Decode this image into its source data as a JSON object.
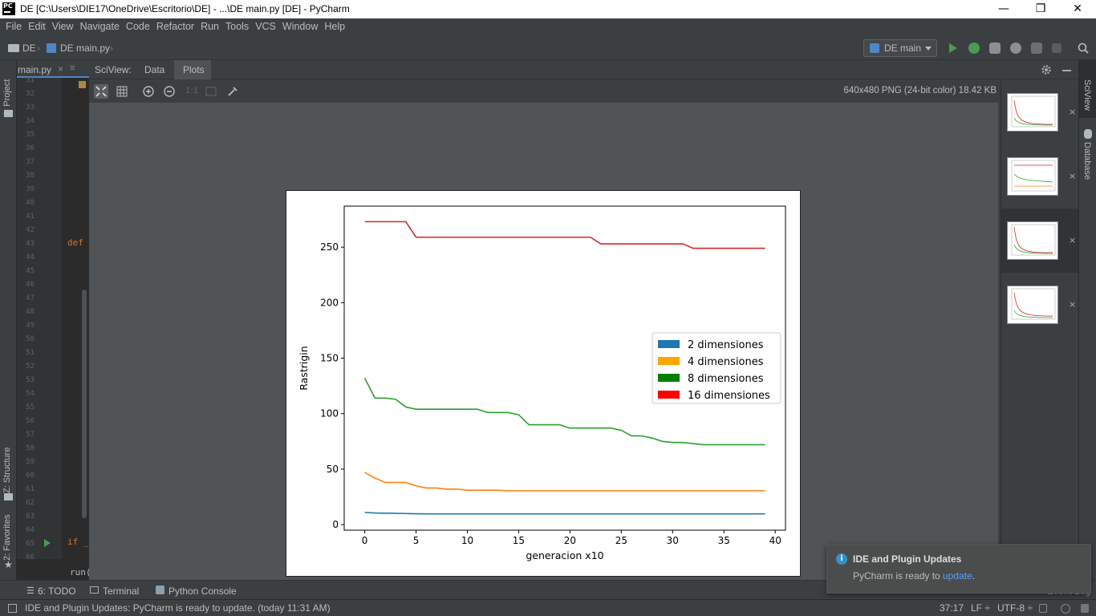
{
  "window": {
    "title": "DE [C:\\Users\\DIE17\\OneDrive\\Escritorio\\DE] - ...\\DE main.py [DE] - PyCharm",
    "logo_text": "PC",
    "minimize": "—",
    "restore": "❐",
    "close": "✕"
  },
  "menu": [
    "File",
    "Edit",
    "View",
    "Navigate",
    "Code",
    "Refactor",
    "Run",
    "Tools",
    "VCS",
    "Window",
    "Help"
  ],
  "navbar": {
    "project": "DE",
    "file": "DE main.py",
    "run_config": "DE main"
  },
  "left_tabs": {
    "project": "1: Project",
    "structure": "Z: Structure",
    "favorites": "2: Favorites"
  },
  "editor": {
    "tab": "main.py",
    "line_numbers": [
      "31",
      "32",
      "33",
      "34",
      "35",
      "36",
      "37",
      "38",
      "39",
      "40",
      "41",
      "42",
      "43",
      "44",
      "45",
      "46",
      "47",
      "48",
      "49",
      "50",
      "51",
      "52",
      "53",
      "54",
      "55",
      "56",
      "57",
      "58",
      "59",
      "60",
      "61",
      "62",
      "63",
      "64",
      "65",
      "66"
    ],
    "code_def": "def",
    "code_if": "if _",
    "code_run": "run("
  },
  "sciview": {
    "label": "SciView:",
    "tab_data": "Data",
    "tab_plots": "Plots",
    "image_info": "640x480 PNG (24-bit color) 18.42 KB",
    "zoom_actual": "1:1",
    "close_thumb": "×"
  },
  "right_tabs": {
    "sciview": "SciView",
    "database": "Database"
  },
  "bottom_tabs": {
    "todo": "6: TODO",
    "terminal": "Terminal",
    "python_console": "Python Console",
    "event_log": "Event Log"
  },
  "status": {
    "message": "IDE and Plugin Updates: PyCharm is ready to update. (today 11:31 AM)",
    "position": "37:17",
    "line_sep": "LF ÷",
    "encoding": "UTF-8 ÷"
  },
  "notification": {
    "title": "IDE and Plugin Updates",
    "body": "PyCharm is ready to ",
    "link": "update",
    "suffix": "."
  },
  "colors": {
    "accent": "#4a88c7",
    "run_green": "#499c54"
  },
  "chart_data": {
    "type": "line",
    "xlabel": "generacion x10",
    "ylabel": "Rastrigin",
    "xlim": [
      -2,
      41
    ],
    "ylim": [
      -5,
      287
    ],
    "xticks": [
      0,
      5,
      10,
      15,
      20,
      25,
      30,
      35,
      40
    ],
    "yticks": [
      0,
      50,
      100,
      150,
      200,
      250
    ],
    "legend_position": "center-right",
    "legend": [
      {
        "label": "2 dimensiones",
        "color": "#1f77b4"
      },
      {
        "label": "4 dimensiones",
        "color": "#ffa500"
      },
      {
        "label": "8 dimensiones",
        "color": "#008000"
      },
      {
        "label": "16 dimensiones",
        "color": "#ff0000"
      }
    ],
    "x": [
      0,
      1,
      2,
      3,
      4,
      5,
      6,
      7,
      8,
      9,
      10,
      11,
      12,
      13,
      14,
      15,
      16,
      17,
      18,
      19,
      20,
      21,
      22,
      23,
      24,
      25,
      26,
      27,
      28,
      29,
      30,
      31,
      32,
      33,
      34,
      35,
      36,
      37,
      38,
      39
    ],
    "series": [
      {
        "color": "#1f77b4",
        "values": [
          11,
          10.5,
          10.3,
          10.2,
          10,
          9.8,
          9.7,
          9.7,
          9.7,
          9.7,
          9.7,
          9.7,
          9.7,
          9.7,
          9.7,
          9.7,
          9.7,
          9.7,
          9.7,
          9.7,
          9.7,
          9.7,
          9.7,
          9.7,
          9.7,
          9.7,
          9.7,
          9.7,
          9.7,
          9.7,
          9.7,
          9.7,
          9.7,
          9.7,
          9.7,
          9.7,
          9.7,
          9.7,
          9.7,
          9.7
        ]
      },
      {
        "color": "#ff7f0e",
        "values": [
          47,
          42,
          38,
          38,
          38,
          35,
          33,
          33,
          32,
          32,
          31,
          31,
          31,
          31,
          30.5,
          30.5,
          30.5,
          30.5,
          30.5,
          30.5,
          30.5,
          30.5,
          30.5,
          30.5,
          30.5,
          30.5,
          30.5,
          30.5,
          30.5,
          30.5,
          30.5,
          30.5,
          30.5,
          30.5,
          30.5,
          30.5,
          30.5,
          30.5,
          30.5,
          30.5
        ]
      },
      {
        "color": "#2ca02c",
        "values": [
          132,
          114,
          114,
          113,
          106,
          104,
          104,
          104,
          104,
          104,
          104,
          104,
          101,
          101,
          101,
          99,
          90,
          90,
          90,
          90,
          87,
          87,
          87,
          87,
          87,
          85,
          80,
          80,
          78,
          75,
          74,
          74,
          73,
          72,
          72,
          72,
          72,
          72,
          72,
          72
        ]
      },
      {
        "color": "#d62728",
        "values": [
          273,
          273,
          273,
          273,
          273,
          259,
          259,
          259,
          259,
          259,
          259,
          259,
          259,
          259,
          259,
          259,
          259,
          259,
          259,
          259,
          259,
          259,
          259,
          253,
          253,
          253,
          253,
          253,
          253,
          253,
          253,
          253,
          249,
          249,
          249,
          249,
          249,
          249,
          249,
          249
        ]
      }
    ]
  }
}
